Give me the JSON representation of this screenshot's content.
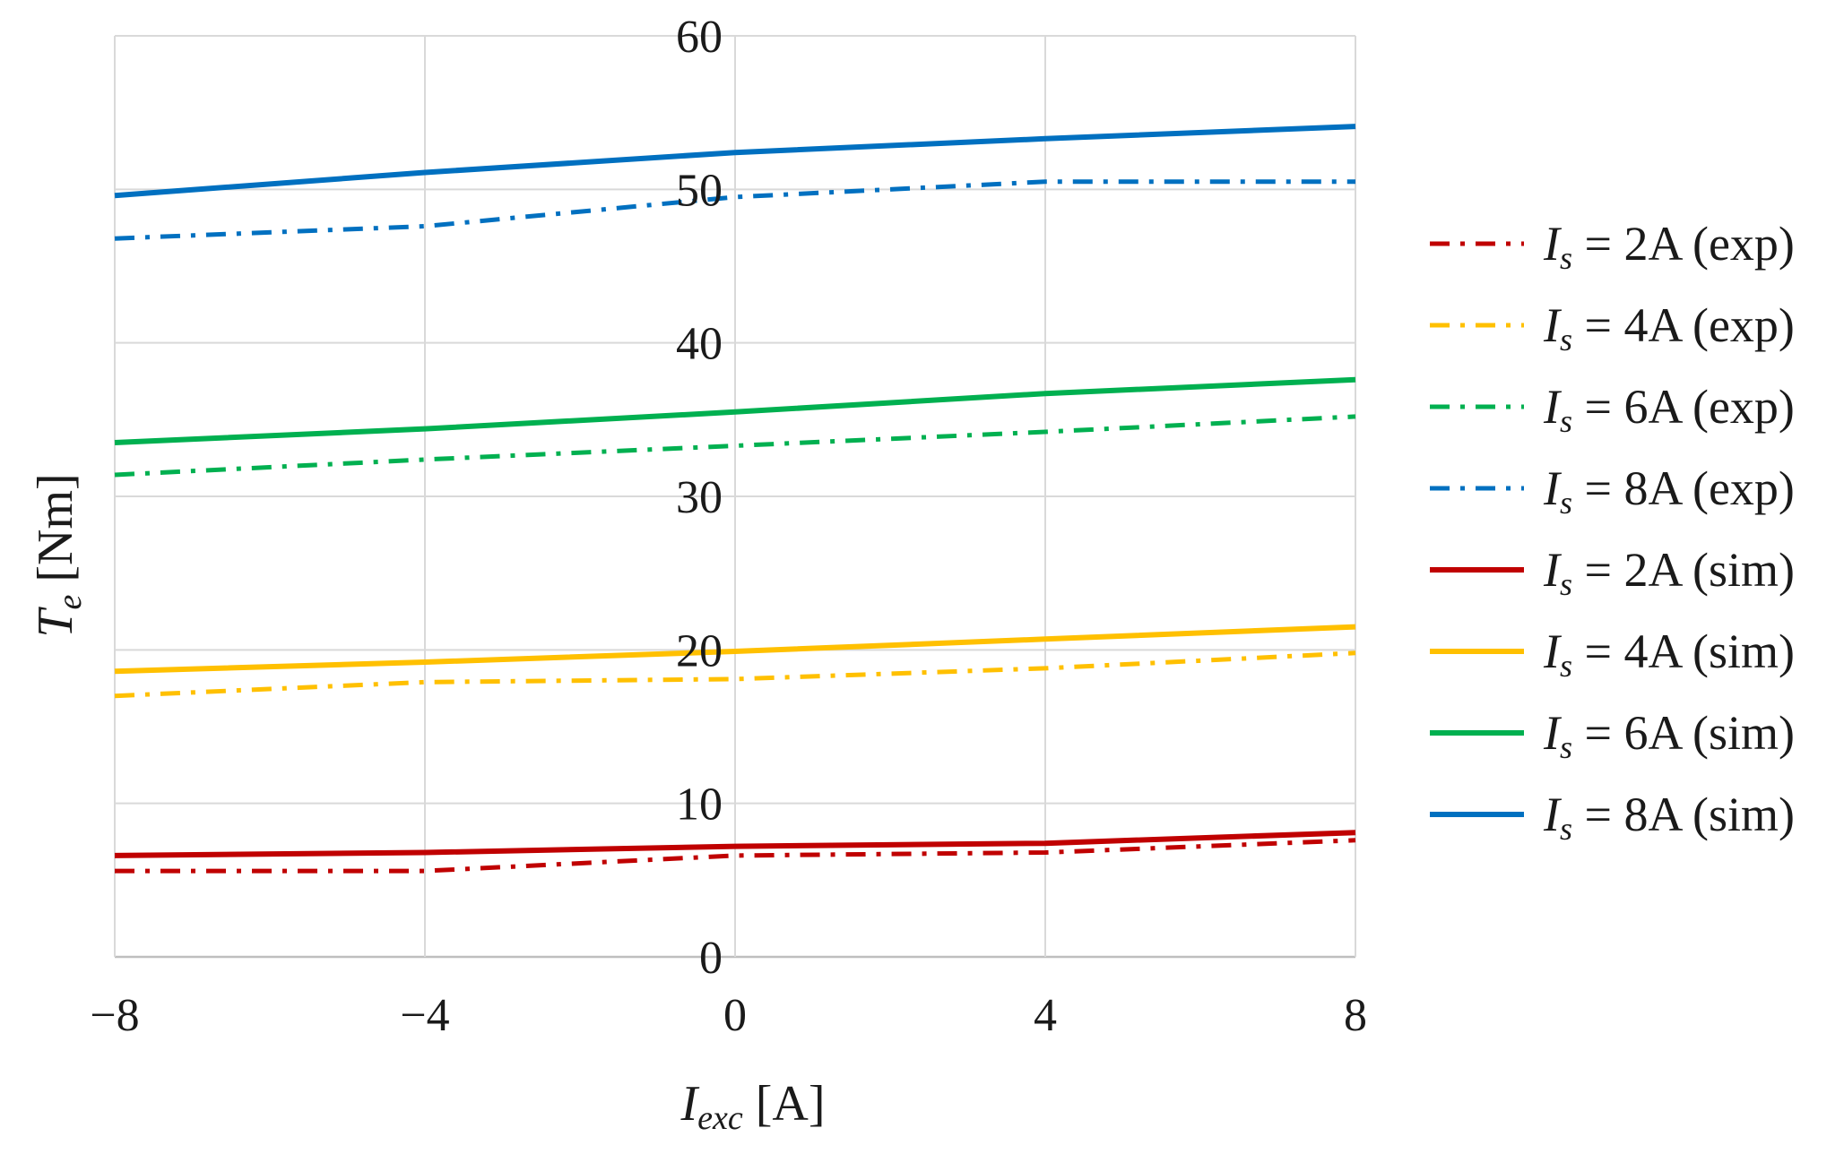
{
  "chart_data": {
    "type": "line",
    "title": "",
    "x": [
      -8,
      -4,
      0,
      4,
      8
    ],
    "xlim": [
      -8,
      8
    ],
    "ylim": [
      0,
      60
    ],
    "xticks": [
      -8,
      -4,
      0,
      4,
      8
    ],
    "yticks": [
      0,
      10,
      20,
      30,
      40,
      50,
      60
    ],
    "xtick_labels": [
      "−8",
      "−4",
      "0",
      "4",
      "8"
    ],
    "ytick_labels": [
      "0",
      "10",
      "20",
      "30",
      "40",
      "50",
      "60"
    ],
    "xlabel": {
      "main": "I",
      "sub": "exc",
      "unit": " [A]"
    },
    "ylabel": {
      "main": "T",
      "sub": "e",
      "unit": " [Nm]"
    },
    "grid": true,
    "legend_position": "right",
    "series": [
      {
        "name": "I_s = 2A (exp)",
        "label_sym": "I",
        "label_sub": "s",
        "label_rest": " = 2A (exp)",
        "color": "#c00000",
        "style": "dashdot",
        "values": [
          5.6,
          5.6,
          6.6,
          6.8,
          7.6
        ]
      },
      {
        "name": "I_s = 4A (exp)",
        "label_sym": "I",
        "label_sub": "s",
        "label_rest": " = 4A (exp)",
        "color": "#ffc000",
        "style": "dashdot",
        "values": [
          17.0,
          17.9,
          18.1,
          18.8,
          19.8
        ]
      },
      {
        "name": "I_s = 6A (exp)",
        "label_sym": "I",
        "label_sub": "s",
        "label_rest": " = 6A (exp)",
        "color": "#00b050",
        "style": "dashdot",
        "values": [
          31.4,
          32.4,
          33.3,
          34.2,
          35.2
        ]
      },
      {
        "name": "I_s = 8A (exp)",
        "label_sym": "I",
        "label_sub": "s",
        "label_rest": " = 8A (exp)",
        "color": "#0070c0",
        "style": "dashdot",
        "values": [
          46.8,
          47.6,
          49.5,
          50.5,
          50.5
        ]
      },
      {
        "name": "I_s = 2A (sim)",
        "label_sym": "I",
        "label_sub": "s",
        "label_rest": " = 2A (sim)",
        "color": "#c00000",
        "style": "solid",
        "values": [
          6.6,
          6.8,
          7.2,
          7.4,
          8.1
        ]
      },
      {
        "name": "I_s = 4A (sim)",
        "label_sym": "I",
        "label_sub": "s",
        "label_rest": " = 4A (sim)",
        "color": "#ffc000",
        "style": "solid",
        "values": [
          18.6,
          19.2,
          19.9,
          20.7,
          21.5
        ]
      },
      {
        "name": "I_s = 6A (sim)",
        "label_sym": "I",
        "label_sub": "s",
        "label_rest": " = 6A (sim)",
        "color": "#00b050",
        "style": "solid",
        "values": [
          33.5,
          34.4,
          35.5,
          36.7,
          37.6
        ]
      },
      {
        "name": "I_s = 8A (sim)",
        "label_sym": "I",
        "label_sub": "s",
        "label_rest": " = 8A (sim)",
        "color": "#0070c0",
        "style": "solid",
        "values": [
          49.6,
          51.1,
          52.4,
          53.3,
          54.1
        ]
      }
    ]
  }
}
